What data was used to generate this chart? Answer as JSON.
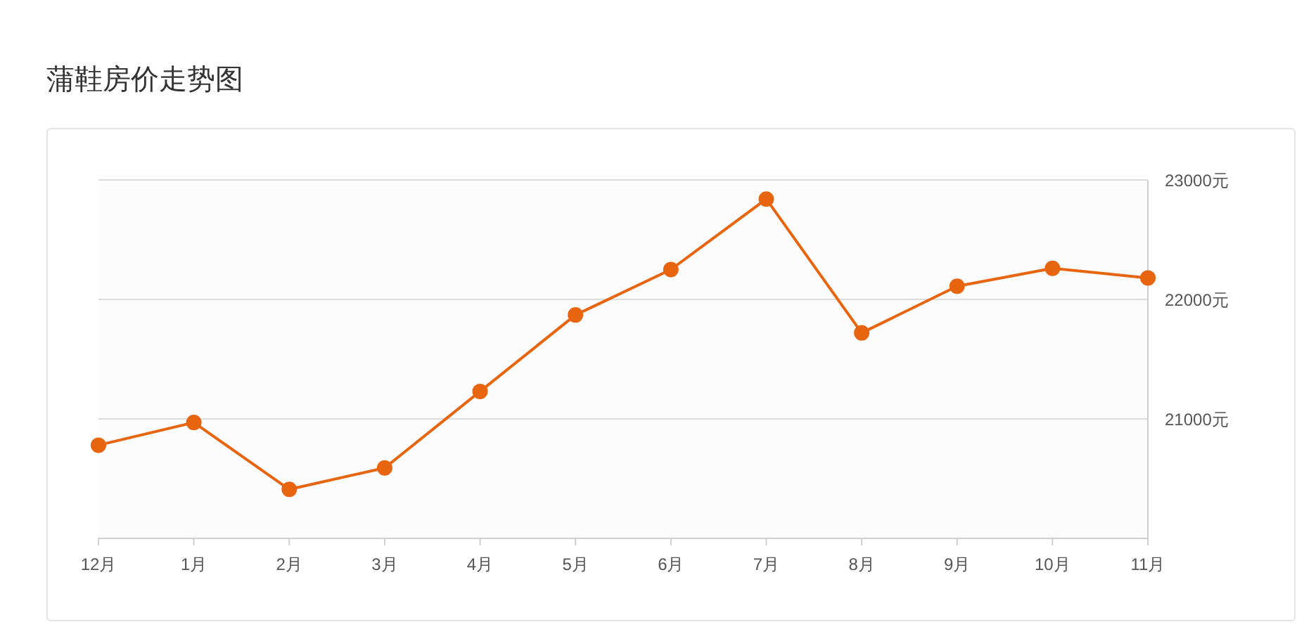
{
  "chart_data": {
    "type": "line",
    "title": "蒲鞋房价走势图",
    "categories": [
      "12月",
      "1月",
      "2月",
      "3月",
      "4月",
      "5月",
      "6月",
      "7月",
      "8月",
      "9月",
      "10月",
      "11月"
    ],
    "values": [
      20780,
      20970,
      20410,
      20590,
      21230,
      21870,
      22250,
      22840,
      21720,
      22110,
      22260,
      22180
    ],
    "color": "#e8650f",
    "ylim": [
      20000,
      23000
    ],
    "yticks": [
      {
        "value": 21000,
        "label": "21000元"
      },
      {
        "value": 22000,
        "label": "22000元"
      },
      {
        "value": 23000,
        "label": "23000元"
      }
    ],
    "grid": "y",
    "marker": "circle"
  }
}
